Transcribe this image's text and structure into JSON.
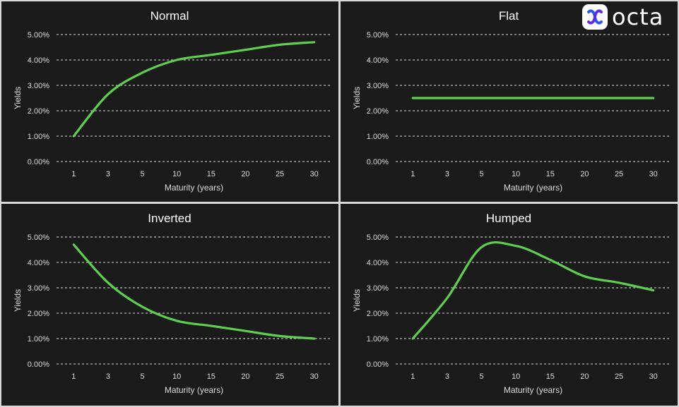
{
  "brand": {
    "name": "octa",
    "icon": "octa-logo-icon",
    "accent": "#2b58e8"
  },
  "series_color": "#5fcf50",
  "chart_data": [
    {
      "type": "line",
      "title": "Normal",
      "xlabel": "Maturity (years)",
      "ylabel": "Yields",
      "categories": [
        "1",
        "3",
        "5",
        "10",
        "15",
        "20",
        "25",
        "30"
      ],
      "values": [
        1.0,
        2.65,
        3.5,
        4.0,
        4.2,
        4.4,
        4.6,
        4.7
      ],
      "ylim": [
        0,
        5
      ],
      "yticks": [
        "0.00%",
        "1.00%",
        "2.00%",
        "3.00%",
        "4.00%",
        "5.00%"
      ],
      "grid": true,
      "legend": "none"
    },
    {
      "type": "line",
      "title": "Flat",
      "xlabel": "Maturity (years)",
      "ylabel": "Yields",
      "categories": [
        "1",
        "3",
        "5",
        "10",
        "15",
        "20",
        "25",
        "30"
      ],
      "values": [
        2.5,
        2.5,
        2.5,
        2.5,
        2.5,
        2.5,
        2.5,
        2.5
      ],
      "ylim": [
        0,
        5
      ],
      "yticks": [
        "0.00%",
        "1.00%",
        "2.00%",
        "3.00%",
        "4.00%",
        "5.00%"
      ],
      "grid": true,
      "legend": "none"
    },
    {
      "type": "line",
      "title": "Inverted",
      "xlabel": "Maturity (years)",
      "ylabel": "Yields",
      "categories": [
        "1",
        "3",
        "5",
        "10",
        "15",
        "20",
        "25",
        "30"
      ],
      "values": [
        4.7,
        3.2,
        2.25,
        1.7,
        1.5,
        1.3,
        1.1,
        1.0
      ],
      "ylim": [
        0,
        5
      ],
      "yticks": [
        "0.00%",
        "1.00%",
        "2.00%",
        "3.00%",
        "4.00%",
        "5.00%"
      ],
      "grid": true,
      "legend": "none"
    },
    {
      "type": "line",
      "title": "Humped",
      "xlabel": "Maturity (years)",
      "ylabel": "Yields",
      "categories": [
        "1",
        "3",
        "5",
        "10",
        "15",
        "20",
        "25",
        "30"
      ],
      "values": [
        1.0,
        2.6,
        4.6,
        4.65,
        4.1,
        3.45,
        3.2,
        2.9
      ],
      "ylim": [
        0,
        5
      ],
      "yticks": [
        "0.00%",
        "1.00%",
        "2.00%",
        "3.00%",
        "4.00%",
        "5.00%"
      ],
      "grid": true,
      "legend": "none"
    }
  ]
}
